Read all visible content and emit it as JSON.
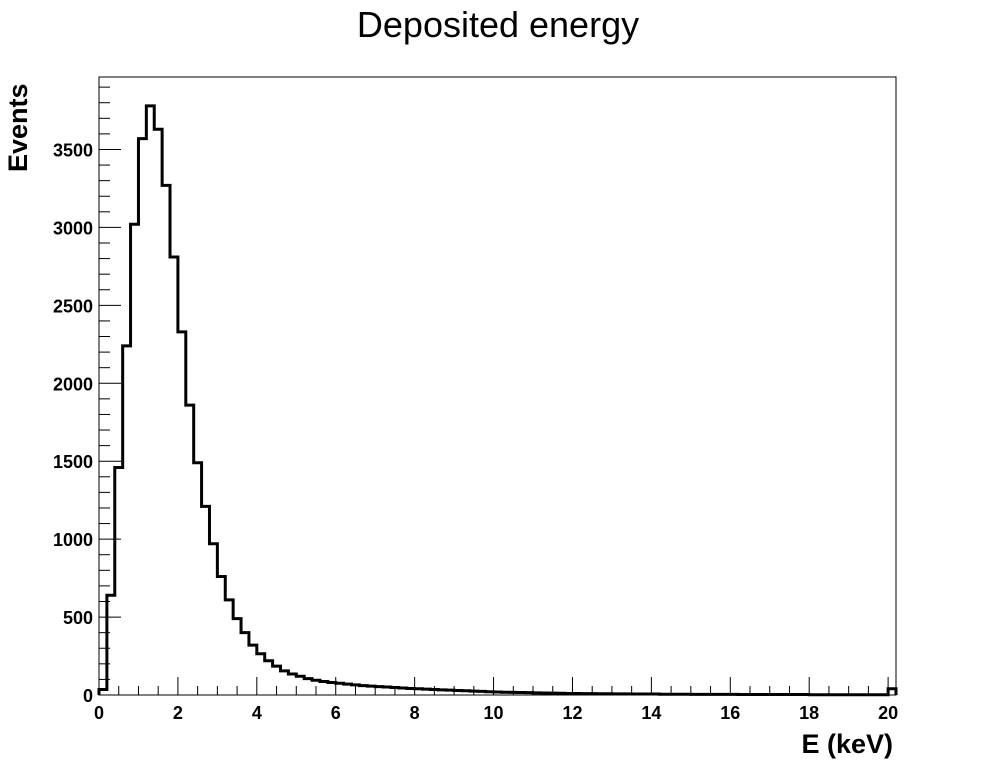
{
  "chart_data": {
    "type": "histogram",
    "title": "Deposited energy",
    "xlabel": "E (keV)",
    "ylabel": "Events",
    "xlim": [
      0,
      20.2
    ],
    "ylim": [
      0,
      3965
    ],
    "x_ticks": [
      0,
      2,
      4,
      6,
      8,
      10,
      12,
      14,
      16,
      18,
      20
    ],
    "y_ticks": [
      0,
      500,
      1000,
      1500,
      2000,
      2500,
      3000,
      3500
    ],
    "bin_width": 0.2,
    "bin_start": 0,
    "values": [
      35,
      640,
      1460,
      2240,
      3020,
      3570,
      3780,
      3630,
      3270,
      2810,
      2330,
      1860,
      1490,
      1210,
      970,
      760,
      610,
      490,
      400,
      320,
      265,
      220,
      185,
      155,
      135,
      120,
      105,
      95,
      87,
      80,
      75,
      70,
      65,
      60,
      57,
      54,
      51,
      48,
      45,
      42,
      40,
      38,
      35,
      33,
      31,
      29,
      27,
      25,
      23,
      21,
      19,
      18,
      17,
      16,
      15,
      14,
      13,
      12,
      11,
      10,
      10,
      9,
      9,
      8,
      8,
      7,
      7,
      6,
      6,
      6,
      6,
      5,
      5,
      5,
      5,
      4,
      4,
      4,
      4,
      4,
      4,
      3,
      3,
      3,
      3,
      3,
      3,
      3,
      3,
      3,
      2,
      2,
      2,
      2,
      2,
      2,
      2,
      2,
      2,
      2,
      40
    ],
    "grid": false,
    "line_color": "#000000"
  }
}
